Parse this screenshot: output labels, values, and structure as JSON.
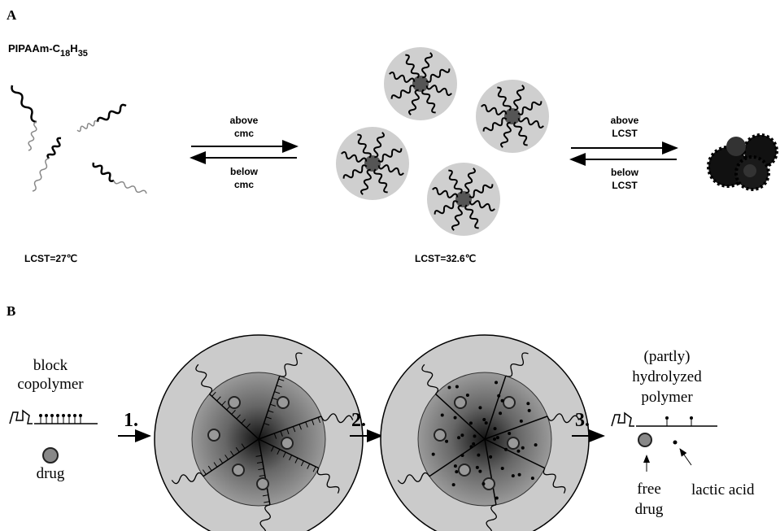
{
  "panel_a": {
    "label": "A",
    "polymer_name": {
      "base": "PIPAAm-C",
      "sub1": "18",
      "mid": "H",
      "sub2": "35"
    },
    "arrow_cmc": {
      "forward": [
        "above",
        "cmc"
      ],
      "backward": [
        "below",
        "cmc"
      ]
    },
    "arrow_lcst": {
      "forward": [
        "above",
        "LCST"
      ],
      "backward": [
        "below",
        "LCST"
      ]
    },
    "lcst_unimer": "LCST=27℃",
    "lcst_micelle": "LCST=32.6℃"
  },
  "panel_b": {
    "label": "B",
    "block_copolymer": [
      "block",
      "copolymer"
    ],
    "drug": "drug",
    "steps": [
      "1.",
      "2.",
      "3."
    ],
    "hydrolyzed_polymer": [
      "(partly)",
      "hydrolyzed",
      "polymer"
    ],
    "free_drug": [
      "free",
      "drug"
    ],
    "lactic_acid": "lactic acid"
  }
}
